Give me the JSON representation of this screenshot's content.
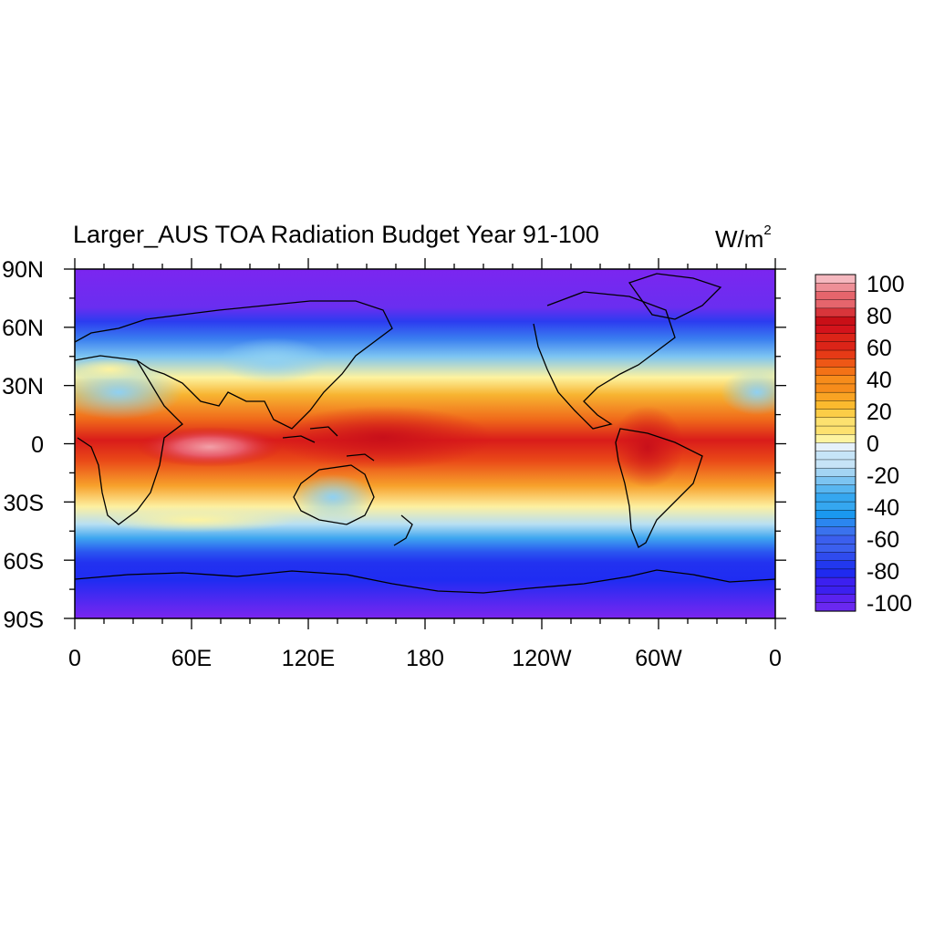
{
  "map": {
    "title": "Larger_AUS TOA Radiation Budget Year 91-100",
    "units_base": "W/m",
    "units_exp": "2",
    "lat_labels": [
      "90N",
      "60N",
      "30N",
      "0",
      "30S",
      "60S",
      "90S"
    ],
    "lon_labels": [
      "0",
      "60E",
      "120E",
      "180",
      "120W",
      "60W",
      "0"
    ],
    "colorbar_labels": [
      "100",
      "80",
      "60",
      "40",
      "20",
      "0",
      "-20",
      "-40",
      "-60",
      "-80",
      "-100"
    ],
    "colorbar_range": [
      -100,
      100
    ],
    "colorbar_step": 5,
    "colors": {
      "strong_negative": "#7b26f0",
      "negative": "#1e3cf0",
      "weak_negative": "#6fc2f0",
      "near_zero": "#fdf3a0",
      "positive": "#f58a1f",
      "strong_positive": "#d4131b",
      "extreme_positive": "#f2a0a8"
    }
  }
}
